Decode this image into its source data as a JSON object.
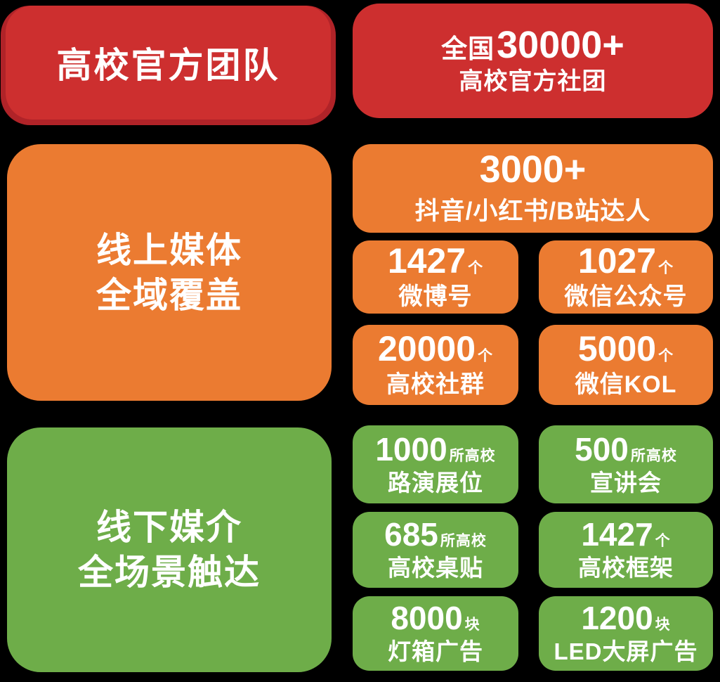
{
  "colors": {
    "background": "#000000",
    "red": "#cd2f2f",
    "red_edge": "#b02328",
    "orange": "#eb7b31",
    "green": "#6ead49",
    "text": "#ffffff"
  },
  "official": {
    "title": "高校官方团队",
    "stat": {
      "prefix": "全国",
      "number": "30000+",
      "label": "高校官方社团"
    }
  },
  "online": {
    "title_line1": "线上媒体",
    "title_line2": "全域覆盖",
    "hero": {
      "number": "3000+",
      "label": "抖音/小红书/B站达人"
    },
    "stats": [
      {
        "number": "1427",
        "unit": "个",
        "label": "微博号"
      },
      {
        "number": "1027",
        "unit": "个",
        "label": "微信公众号"
      },
      {
        "number": "20000",
        "unit": "个",
        "label": "高校社群"
      },
      {
        "number": "5000",
        "unit": "个",
        "label": "微信KOL"
      }
    ]
  },
  "offline": {
    "title_line1": "线下媒介",
    "title_line2": "全场景触达",
    "stats": [
      {
        "number": "1000",
        "unit": "所高校",
        "label": "路演展位"
      },
      {
        "number": "500",
        "unit": "所高校",
        "label": "宣讲会"
      },
      {
        "number": "685",
        "unit": "所高校",
        "label": "高校桌贴"
      },
      {
        "number": "1427",
        "unit": "个",
        "label": "高校框架"
      },
      {
        "number": "8000",
        "unit": "块",
        "label": "灯箱广告"
      },
      {
        "number": "1200",
        "unit": "块",
        "label": "LED大屏广告"
      }
    ]
  }
}
